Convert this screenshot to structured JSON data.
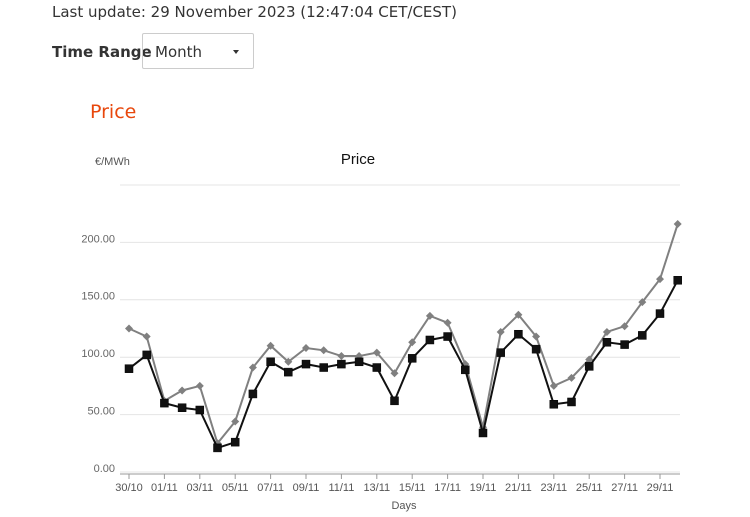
{
  "header": {
    "last_update": "Last update: 29 November 2023 (12:47:04 CET/CEST)",
    "time_range_label": "Time Range",
    "time_range_value": "Month",
    "section_title": "Price"
  },
  "chart_data": {
    "type": "line",
    "title": "Price",
    "y_label": "€/MWh",
    "x_label": "Days",
    "categories": [
      "30/10",
      null,
      "01/11",
      null,
      "03/11",
      null,
      "05/11",
      null,
      "07/11",
      null,
      "09/11",
      null,
      "11/11",
      null,
      "13/11",
      null,
      "15/11",
      null,
      "17/11",
      null,
      "19/11",
      null,
      "21/11",
      null,
      "23/11",
      null,
      "25/11",
      null,
      "27/11",
      null,
      "29/11",
      null
    ],
    "series": [
      {
        "color": "#808080",
        "marker": "diamond",
        "values": [
          125,
          118,
          62,
          71,
          75,
          25,
          44,
          91,
          110,
          96,
          108,
          106,
          101,
          101,
          104,
          86,
          113,
          136,
          130,
          94,
          39,
          122,
          137,
          118,
          75,
          82,
          98,
          122,
          127,
          148,
          168,
          216
        ]
      },
      {
        "color": "#111111",
        "marker": "square",
        "values": [
          90,
          102,
          60,
          56,
          54,
          21,
          26,
          68,
          96,
          87,
          94,
          91,
          94,
          96,
          91,
          62,
          99,
          115,
          118,
          89,
          34,
          104,
          120,
          107,
          59,
          61,
          92,
          113,
          111,
          119,
          138,
          167
        ]
      }
    ],
    "ylim": [
      0,
      250
    ],
    "yticks": [
      {
        "value": 0,
        "label": "0.00"
      },
      {
        "value": 50,
        "label": "50.00"
      },
      {
        "value": 100,
        "label": "100.00"
      },
      {
        "value": 150,
        "label": "150.00"
      },
      {
        "value": 200,
        "label": "200.00"
      }
    ],
    "grid": true
  }
}
